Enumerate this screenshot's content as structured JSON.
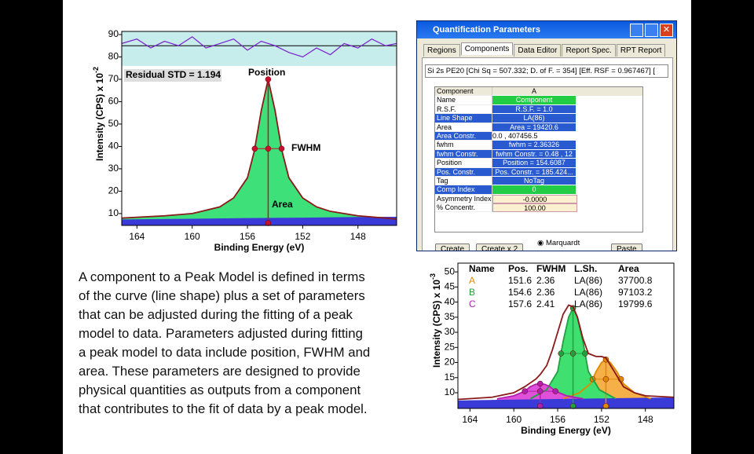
{
  "chart_data": [
    {
      "type": "line",
      "xlabel": "Binding Energy (eV)",
      "ylabel": "Intensity (CPS) x 10",
      "ylabel_exponent": "-2",
      "xlim": [
        165.1,
        145.2
      ],
      "ylim": [
        4.7,
        91.4
      ],
      "xticks": [
        164,
        160,
        156,
        152,
        148
      ],
      "yticks": [
        10,
        20,
        30,
        40,
        50,
        60,
        70,
        80,
        90
      ],
      "annotations": [
        "Residual STD = 1.194",
        "Position",
        "FWHM",
        "Area"
      ],
      "series": [
        {
          "role": "envelope",
          "color": "#8b1a1a",
          "fill": "#3ee07a",
          "x": [
            165.1,
            162,
            160,
            158,
            157,
            156,
            155.5,
            155,
            154.5,
            154,
            153.5,
            153,
            152,
            151,
            150,
            148,
            146,
            145.2
          ],
          "values": [
            8,
            9,
            10,
            13,
            17,
            26,
            38,
            56,
            70,
            56,
            38,
            26,
            17,
            13,
            11,
            9,
            8,
            7.5
          ]
        },
        {
          "role": "background",
          "color": "#3a3ad8",
          "fill": "#3a3ad8",
          "x": [
            165.1,
            160,
            156,
            152,
            148,
            145.2
          ],
          "values": [
            7.2,
            7.5,
            7.8,
            8,
            8.3,
            8.4
          ]
        },
        {
          "role": "residual",
          "color": "#7a1fd0",
          "x": [
            165.1,
            164,
            163,
            162,
            161,
            160,
            159,
            158,
            157,
            156,
            155,
            154,
            153,
            152,
            151,
            150,
            149,
            148,
            147,
            146,
            145.2
          ],
          "values": [
            86,
            88,
            84,
            87,
            85,
            89,
            84,
            86,
            88,
            83,
            87,
            85,
            82,
            80,
            84,
            81,
            86,
            84,
            88,
            85,
            86
          ]
        }
      ]
    },
    {
      "type": "line",
      "xlabel": "Binding Energy (eV)",
      "ylabel": "Intensity (CPS) x 10",
      "ylabel_exponent": "-3",
      "xlim": [
        165.1,
        145.4
      ],
      "ylim": [
        4.8,
        52.9
      ],
      "xticks": [
        164,
        160,
        156,
        152,
        148
      ],
      "yticks": [
        10,
        15,
        20,
        25,
        30,
        35,
        40,
        45,
        50
      ],
      "table": {
        "columns": [
          "Name",
          "Pos.",
          "FWHM",
          "L.Sh.",
          "Area"
        ],
        "rows": [
          [
            "A",
            "151.6",
            "2.36",
            "LA(86)",
            "37700.8"
          ],
          [
            "B",
            "154.6",
            "2.36",
            "LA(86)",
            "97103.2"
          ],
          [
            "C",
            "157.6",
            "2.41",
            "LA(86)",
            "19799.6"
          ]
        ]
      },
      "series": [
        {
          "role": "component",
          "color": "#e08a00",
          "fill": "#f5b04a",
          "x": [
            155.5,
            154,
            153,
            152.5,
            152,
            151.6,
            151.2,
            150.6,
            150,
            149,
            147.5
          ],
          "values": [
            8,
            10,
            13,
            17,
            20,
            21,
            20,
            17,
            13,
            10,
            8
          ]
        },
        {
          "role": "component",
          "color": "#20a040",
          "fill": "#40e070",
          "x": [
            158.5,
            157,
            156,
            155.5,
            155,
            154.6,
            154.2,
            153.7,
            153.2,
            152.2,
            150.7
          ],
          "values": [
            8,
            11,
            17,
            27,
            35,
            38,
            35,
            27,
            17,
            11,
            8
          ]
        },
        {
          "role": "component",
          "color": "#b020b0",
          "fill": "#e050d8",
          "x": [
            161.5,
            160,
            159,
            158.5,
            158,
            157.6,
            157.2,
            156.7,
            156.2,
            155.2,
            153.7
          ],
          "values": [
            8,
            9,
            10.5,
            12,
            12.8,
            13,
            12.8,
            12,
            10.5,
            9,
            8
          ]
        },
        {
          "role": "background",
          "color": "#3a3ad8",
          "fill": "#3a3ad8",
          "x": [
            165.1,
            160,
            156,
            152,
            148,
            145.4
          ],
          "values": [
            7.3,
            7.6,
            7.8,
            8,
            8.2,
            8.3
          ]
        },
        {
          "role": "envelope",
          "color": "#8b1a1a",
          "x": [
            165.1,
            162,
            160,
            159,
            158,
            157.6,
            157,
            156.5,
            156,
            155.5,
            155,
            154.6,
            154.2,
            153.7,
            153.2,
            152.5,
            152,
            151.6,
            151,
            150.5,
            150,
            149,
            148,
            145.4
          ],
          "values": [
            7.8,
            8.5,
            10,
            12,
            14.5,
            16,
            19,
            24,
            30,
            36,
            39,
            38.5,
            35,
            28,
            23,
            22,
            22,
            21.5,
            18,
            15,
            12,
            10,
            9,
            8.5
          ]
        }
      ]
    }
  ],
  "dialog": {
    "title": "Quantification Parameters",
    "tabs": [
      "Regions",
      "Components",
      "Data Editor",
      "Report Spec.",
      "RPT Report"
    ],
    "fit": "Si 2s PE20 [Chi Sq = 507.332; D. of F. = 354] [Eff. RSF = 0.967467] [",
    "header": [
      "Component",
      "A"
    ],
    "rows": [
      [
        "Name",
        "Component"
      ],
      [
        "R.S.F.",
        "R.S.F. = 1.0"
      ],
      [
        "Line Shape",
        "LA(86)"
      ],
      [
        "Area",
        "Area = 19420.6"
      ],
      [
        "Area Constr.",
        "0.0 , 407456.5"
      ],
      [
        "fwhm",
        "fwhm = 2.36326"
      ],
      [
        "fwhm Constr.",
        "fwhm Constr. = 0.48 , 12"
      ],
      [
        "Position",
        "Position = 154.6087"
      ],
      [
        "Pos. Constr.",
        "Pos. Constr. = 185.424..."
      ],
      [
        "Tag",
        "NoTag"
      ],
      [
        "Comp Index",
        "0"
      ],
      [
        "Asymmetry Index",
        "-0.0000"
      ],
      [
        "% Concentr.",
        "100.00"
      ]
    ],
    "buttons": [
      "Create",
      "Create x 2",
      "Marquardt",
      "Paste"
    ]
  },
  "paragraph": {
    "lines": [
      "A component to a Peak Model is defined in terms",
      "of the curve (line shape) plus a set of parameters",
      "that can be adjusted during the fitting of a peak",
      "model to data. Parameters adjusted  during fitting",
      "a peak model to data include position, FWHM and",
      "area. These parameters are designed to provide",
      "physical quantities as outputs from a component",
      "that contributes to the fit of data by a peak model."
    ]
  }
}
